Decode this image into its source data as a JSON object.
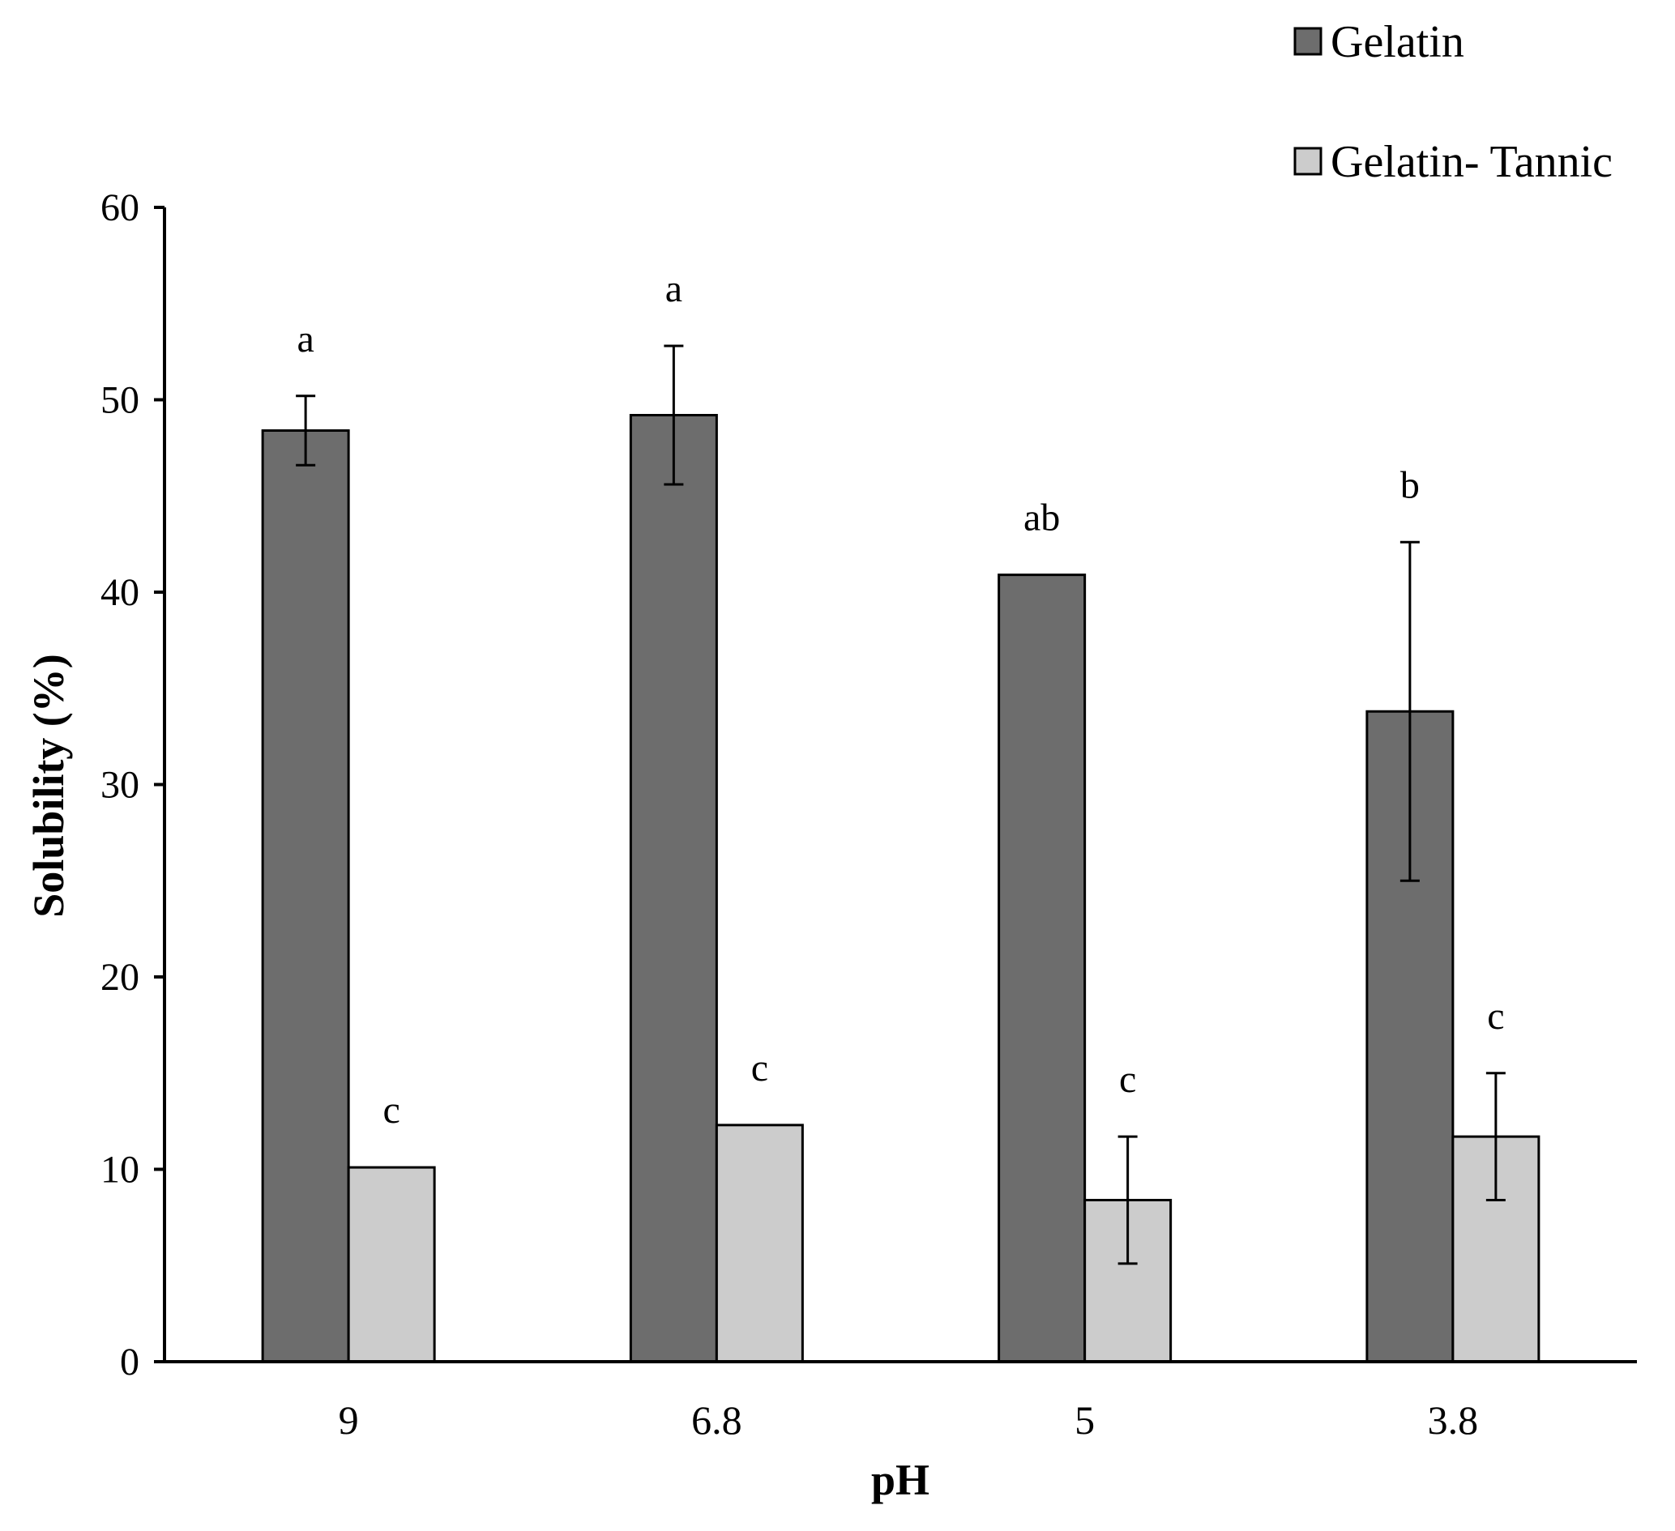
{
  "chart_data": {
    "type": "bar",
    "title": "",
    "xlabel": "pH",
    "ylabel": "Solubility (%)",
    "ylim": [
      0,
      60
    ],
    "yticks": [
      0,
      10,
      20,
      30,
      40,
      50,
      60
    ],
    "categories": [
      "9",
      "6.8",
      "5",
      "3.8"
    ],
    "legend_position": "top-right",
    "grid": false,
    "series": [
      {
        "name": "Gelatin",
        "color": "#6d6d6d",
        "values": [
          48.4,
          49.2,
          40.9,
          33.8
        ],
        "errors": [
          1.8,
          3.6,
          0,
          8.8
        ],
        "labels": [
          "a",
          "a",
          "ab",
          "b"
        ]
      },
      {
        "name": "Gelatin- Tannic",
        "color": "#cccccc",
        "values": [
          10.1,
          12.3,
          8.4,
          11.7
        ],
        "errors": [
          0,
          0,
          3.3,
          3.3
        ],
        "labels": [
          "c",
          "c",
          "c",
          "c"
        ]
      }
    ]
  }
}
